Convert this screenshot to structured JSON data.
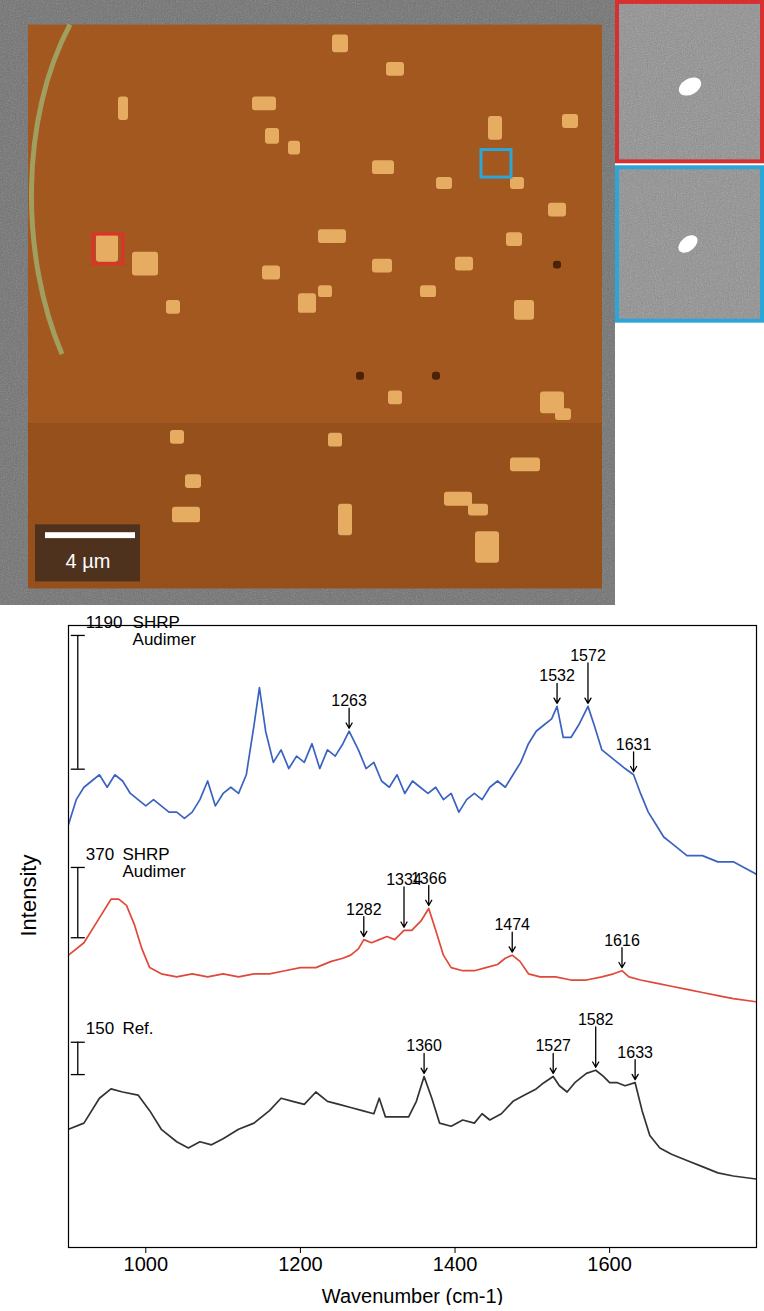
{
  "image": {
    "scale_bar_label": "4 µm"
  },
  "chart_data": {
    "type": "line",
    "xlabel": "Wavenumber (cm-1)",
    "ylabel": "Intensity",
    "xlim": [
      900,
      1790
    ],
    "xticks": [
      1000,
      1200,
      1400,
      1600
    ],
    "ylim": [
      0,
      100
    ],
    "tick_labels": "x",
    "series": [
      {
        "name": "SHRP Audimer",
        "color": "#3a63c0",
        "x": [
          900,
          910,
          920,
          930,
          940,
          950,
          960,
          970,
          980,
          990,
          1000,
          1010,
          1020,
          1030,
          1040,
          1050,
          1060,
          1070,
          1080,
          1090,
          1100,
          1110,
          1120,
          1130,
          1140,
          1147,
          1155,
          1165,
          1175,
          1185,
          1195,
          1205,
          1215,
          1225,
          1235,
          1245,
          1255,
          1263,
          1275,
          1285,
          1295,
          1305,
          1315,
          1325,
          1335,
          1345,
          1355,
          1365,
          1375,
          1385,
          1395,
          1405,
          1415,
          1425,
          1435,
          1445,
          1455,
          1465,
          1475,
          1485,
          1495,
          1505,
          1515,
          1525,
          1532,
          1540,
          1550,
          1560,
          1572,
          1580,
          1590,
          1600,
          1610,
          1620,
          1631,
          1640,
          1650,
          1660,
          1670,
          1680,
          1690,
          1700,
          1720,
          1740,
          1760,
          1775,
          1790
        ],
        "values": [
          68,
          72,
          74,
          75,
          76,
          74,
          76,
          75,
          73,
          72,
          71,
          72,
          71,
          70,
          70,
          69,
          70,
          72,
          75,
          71,
          73,
          74,
          73,
          76,
          84,
          90,
          83,
          78,
          80,
          77,
          79,
          78,
          81,
          77,
          80,
          79,
          81,
          83,
          80,
          77,
          78,
          75,
          74,
          76,
          73,
          75,
          74,
          73,
          74,
          72,
          73,
          70,
          72,
          73,
          72,
          74,
          75,
          74,
          76,
          78,
          81,
          83,
          84,
          85,
          87,
          82,
          82,
          84,
          87,
          84,
          80,
          79,
          78,
          77,
          76,
          73,
          70,
          68,
          66,
          65,
          64,
          63,
          63,
          62,
          62,
          61,
          60
        ],
        "scale_bar": {
          "counts": 1190,
          "x": 912,
          "y0": 76.9,
          "y1": 98.4
        },
        "peaks": [
          {
            "x": 1263,
            "y": 83
          },
          {
            "x": 1532,
            "y": 87
          },
          {
            "x": 1572,
            "y": 87
          },
          {
            "x": 1631,
            "y": 76
          }
        ]
      },
      {
        "name": "SHRP Audimer",
        "color": "#e0483a",
        "x": [
          900,
          920,
          940,
          955,
          965,
          975,
          985,
          995,
          1005,
          1020,
          1040,
          1060,
          1080,
          1100,
          1120,
          1140,
          1160,
          1180,
          1200,
          1220,
          1240,
          1255,
          1265,
          1275,
          1282,
          1292,
          1302,
          1312,
          1322,
          1334,
          1344,
          1356,
          1366,
          1375,
          1385,
          1395,
          1410,
          1425,
          1440,
          1455,
          1465,
          1474,
          1484,
          1495,
          1510,
          1530,
          1550,
          1570,
          1590,
          1605,
          1616,
          1625,
          1640,
          1660,
          1680,
          1700,
          1720,
          1740,
          1760,
          1790
        ],
        "values": [
          47,
          49,
          53,
          56,
          56,
          55,
          52,
          48,
          45,
          44,
          43.5,
          44,
          43.5,
          44,
          43.5,
          44,
          44,
          44.5,
          45,
          45,
          46,
          46.5,
          47,
          48,
          49.5,
          49,
          49.5,
          50,
          49.5,
          51,
          51,
          52.5,
          54.5,
          51,
          47,
          45,
          44.5,
          44.5,
          45,
          45.5,
          46.5,
          47,
          46,
          44,
          43.5,
          43.5,
          43,
          43,
          43.5,
          44,
          44.5,
          43.5,
          43,
          42.5,
          42,
          41.5,
          41,
          40.5,
          40,
          39.5
        ],
        "scale_bar": {
          "counts": 370,
          "x": 912,
          "y0": 49.8,
          "y1": 61.1
        },
        "peaks": [
          {
            "x": 1282,
            "y": 49.5
          },
          {
            "x": 1334,
            "y": 51
          },
          {
            "x": 1366,
            "y": 54.5
          },
          {
            "x": 1474,
            "y": 47
          },
          {
            "x": 1616,
            "y": 44.5
          }
        ]
      },
      {
        "name": "Ref.",
        "color": "#333333",
        "x": [
          900,
          920,
          940,
          955,
          970,
          990,
          1005,
          1020,
          1040,
          1055,
          1070,
          1085,
          1100,
          1120,
          1140,
          1160,
          1175,
          1190,
          1205,
          1220,
          1235,
          1250,
          1265,
          1280,
          1295,
          1302,
          1310,
          1325,
          1340,
          1350,
          1360,
          1370,
          1380,
          1395,
          1410,
          1425,
          1435,
          1445,
          1460,
          1475,
          1490,
          1505,
          1515,
          1527,
          1535,
          1545,
          1555,
          1570,
          1582,
          1592,
          1600,
          1610,
          1620,
          1633,
          1642,
          1652,
          1665,
          1680,
          1700,
          1720,
          1740,
          1760,
          1790
        ],
        "values": [
          19,
          20,
          24,
          25.5,
          25,
          24.5,
          22,
          19,
          17,
          16,
          17,
          16.5,
          17.5,
          19,
          20,
          22,
          24,
          23.5,
          23,
          25,
          23.5,
          23,
          22.5,
          22,
          21.5,
          24,
          21,
          21,
          21,
          23.5,
          27.5,
          24,
          20,
          19.5,
          20.5,
          20,
          21.5,
          20.5,
          21.5,
          23.5,
          24.5,
          25.5,
          26.5,
          27.5,
          26,
          25,
          26.5,
          28,
          28.5,
          27.5,
          26.5,
          26.5,
          26,
          26.5,
          22,
          18,
          16,
          15,
          14,
          13,
          12,
          11.5,
          11
        ],
        "scale_bar": {
          "counts": 150,
          "x": 912,
          "y0": 27.8,
          "y1": 33
        },
        "peaks": [
          {
            "x": 1360,
            "y": 27.5
          },
          {
            "x": 1527,
            "y": 27.5
          },
          {
            "x": 1582,
            "y": 28.5
          },
          {
            "x": 1633,
            "y": 26.5
          }
        ]
      }
    ]
  }
}
